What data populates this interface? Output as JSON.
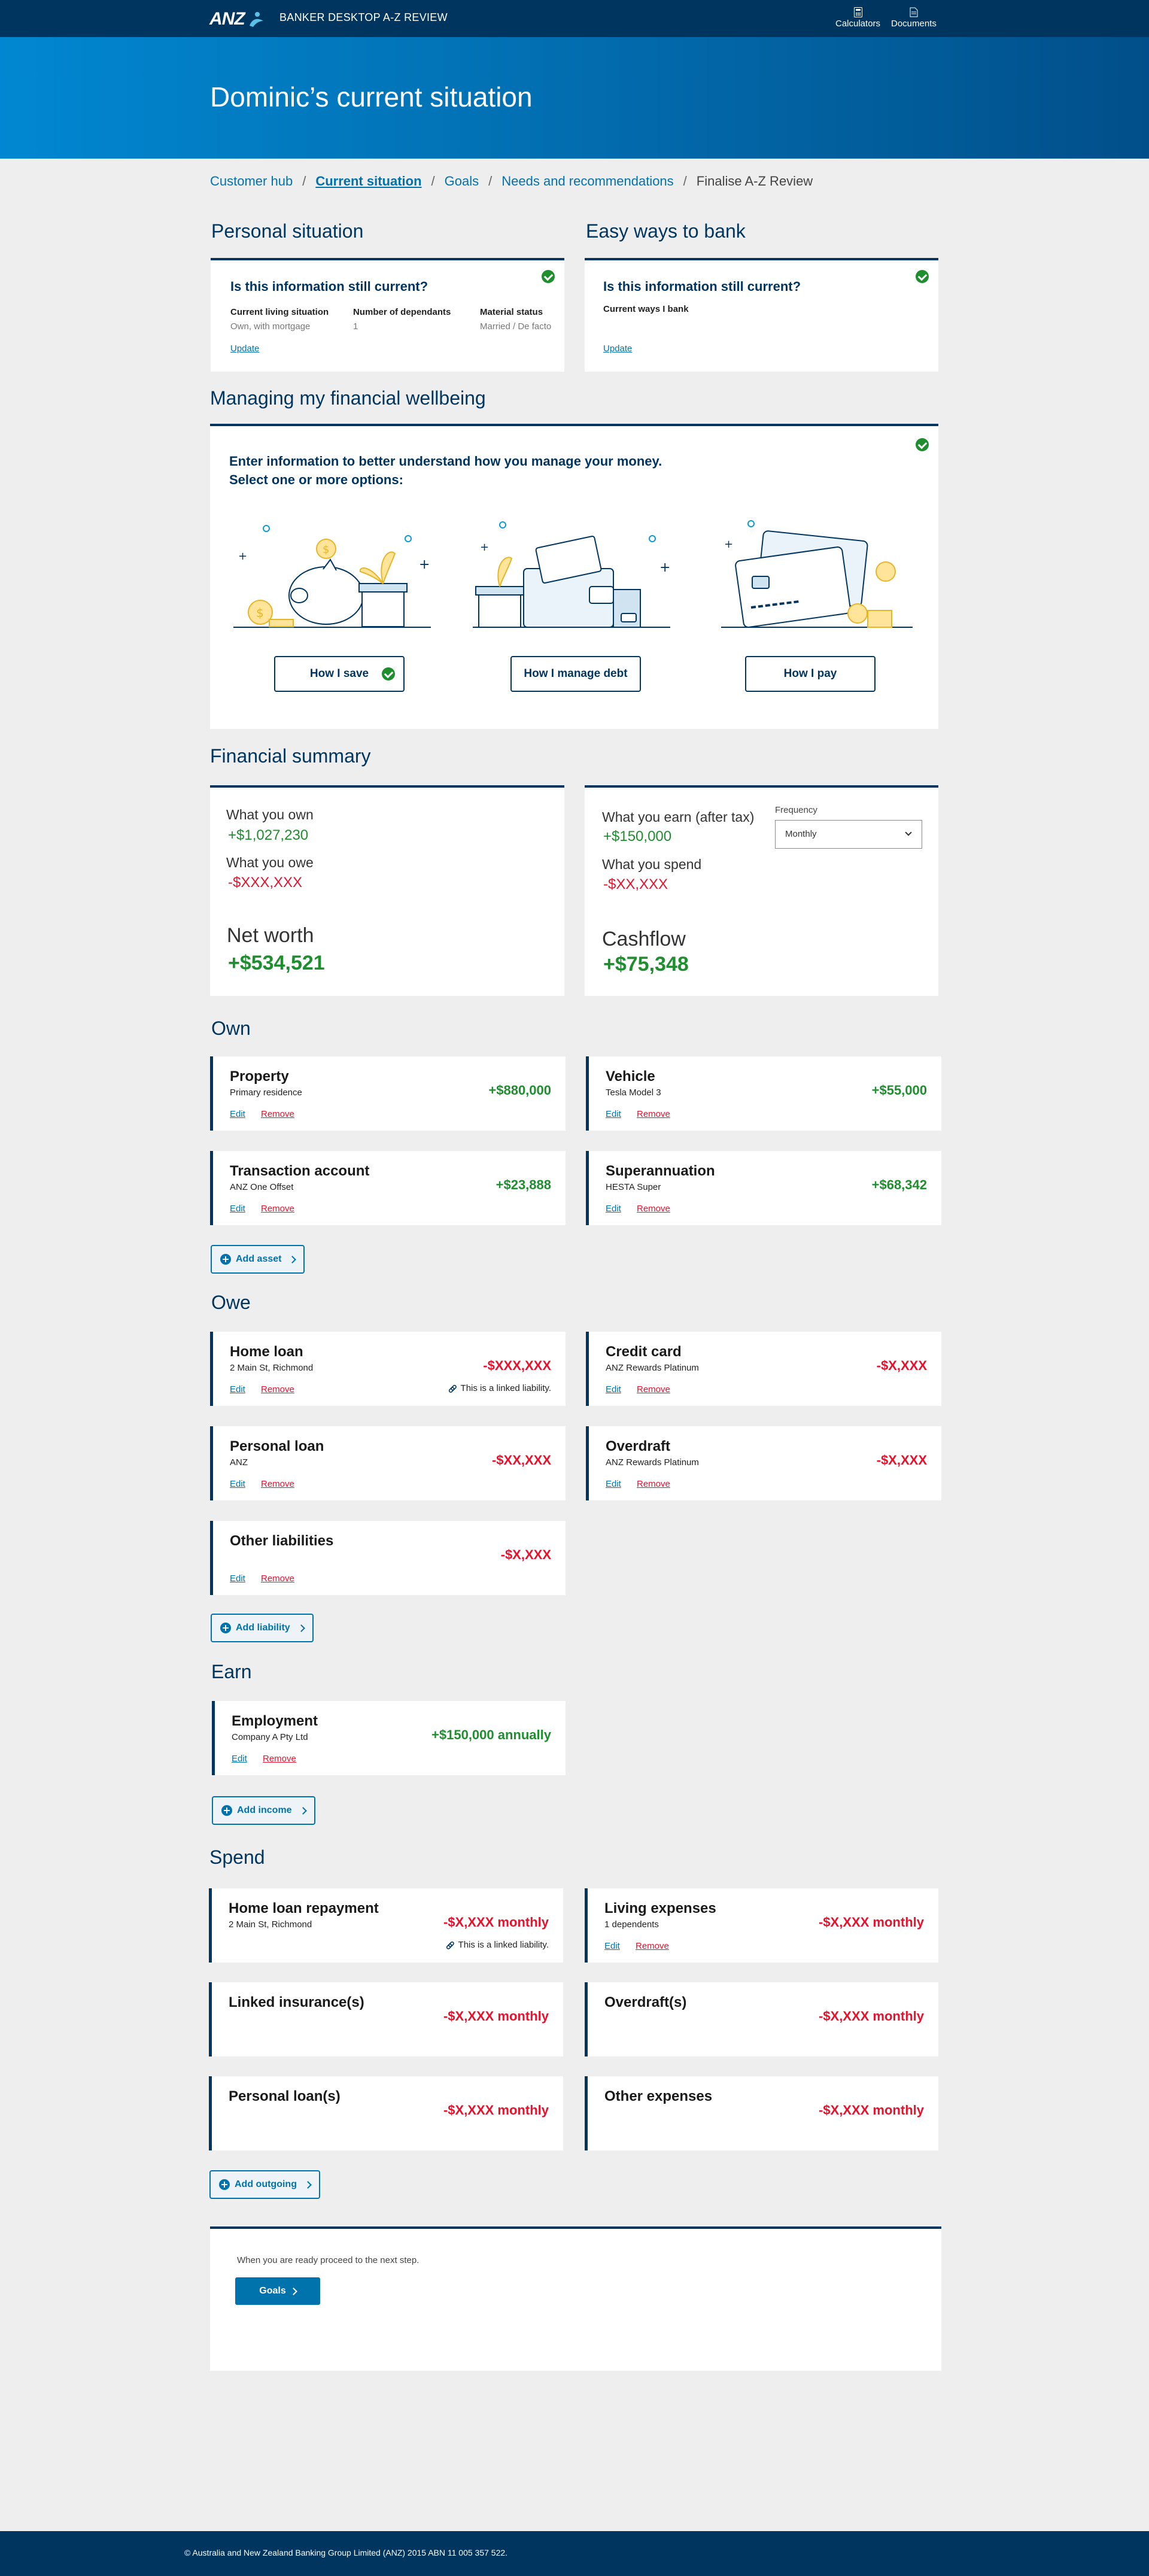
{
  "header": {
    "logo_text": "ANZ",
    "app_title": "BANKER DESKTOP A-Z REVIEW",
    "tools": [
      {
        "label": "Calculators",
        "icon": "calculator-icon"
      },
      {
        "label": "Documents",
        "icon": "document-icon"
      }
    ]
  },
  "hero": {
    "title": "Dominic’s current situation"
  },
  "breadcrumb": [
    {
      "label": "Customer hub"
    },
    {
      "label": "Current situation"
    },
    {
      "label": "Goals"
    },
    {
      "label": "Needs and recommendations"
    },
    {
      "label": "Finalise A-Z Review"
    }
  ],
  "personal": {
    "title": "Personal situation",
    "question": "Is this information still current?",
    "fields": [
      {
        "label": "Current living situation",
        "value": "Own, with mortgage"
      },
      {
        "label": "Number of dependants",
        "value": "1"
      },
      {
        "label": "Material status",
        "value": "Married / De facto"
      }
    ],
    "update": "Update"
  },
  "easy": {
    "title": "Easy ways to bank",
    "question": "Is this information still current?",
    "label": "Current ways I bank",
    "update": "Update"
  },
  "wellbeing": {
    "title": "Managing my financial wellbeing",
    "intro1": "Enter information to better understand how you manage your money.",
    "intro2": "Select one or more options:",
    "options": [
      {
        "label": "How I save",
        "selected": true
      },
      {
        "label": "How I manage debt",
        "selected": false
      },
      {
        "label": "How I pay",
        "selected": false
      }
    ]
  },
  "summary": {
    "title": "Financial summary",
    "own_label": "What you own",
    "own_value": "+$1,027,230",
    "owe_label": "What you owe",
    "owe_value": "-$XXX,XXX",
    "net_label": "Net worth",
    "net_value": "+$534,521",
    "earn_label": "What you earn (after tax)",
    "earn_value": "+$150,000",
    "spend_label": "What you spend",
    "spend_value": "-$XX,XXX",
    "cash_label": "Cashflow",
    "cash_value": "+$75,348",
    "frequency_label": "Frequency",
    "frequency_value": "Monthly"
  },
  "own": {
    "title": "Own",
    "items": [
      {
        "title": "Property",
        "sub": "Primary residence",
        "amount": "+$880,000"
      },
      {
        "title": "Vehicle",
        "sub": "Tesla Model 3",
        "amount": "+$55,000"
      },
      {
        "title": "Transaction account",
        "sub": "ANZ One Offset",
        "amount": "+$23,888"
      },
      {
        "title": "Superannuation",
        "sub": "HESTA Super",
        "amount": "+$68,342"
      }
    ],
    "add": "Add asset"
  },
  "owe": {
    "title": "Owe",
    "items": [
      {
        "title": "Home loan",
        "sub": "2 Main St, Richmond",
        "amount": "-$XXX,XXX",
        "linked": "This is a linked liability."
      },
      {
        "title": "Credit card",
        "sub": "ANZ Rewards Platinum",
        "amount": "-$X,XXX"
      },
      {
        "title": "Personal loan",
        "sub": "ANZ",
        "amount": "-$XX,XXX"
      },
      {
        "title": "Overdraft",
        "sub": "ANZ Rewards Platinum",
        "amount": "-$X,XXX"
      },
      {
        "title": "Other liabilities",
        "sub": "",
        "amount": "-$X,XXX"
      }
    ],
    "add": "Add liability"
  },
  "earn": {
    "title": "Earn",
    "items": [
      {
        "title": "Employment",
        "sub": "Company A Pty Ltd",
        "amount": "+$150,000 annually"
      }
    ],
    "add": "Add income"
  },
  "spend": {
    "title": "Spend",
    "items": [
      {
        "title": "Home loan repayment",
        "sub": "2 Main St, Richmond",
        "amount": "-$X,XXX monthly",
        "linked": "This is a linked liability."
      },
      {
        "title": "Living expenses",
        "sub": "1 dependents",
        "amount": "-$X,XXX monthly"
      },
      {
        "title": "Linked insurance(s)",
        "sub": "",
        "amount": "-$X,XXX monthly"
      },
      {
        "title": "Overdraft(s)",
        "sub": "",
        "amount": "-$X,XXX monthly"
      },
      {
        "title": "Personal loan(s)",
        "sub": "",
        "amount": "-$X,XXX monthly"
      },
      {
        "title": "Other expenses",
        "sub": "",
        "amount": "-$X,XXX monthly"
      }
    ],
    "add": "Add outgoing"
  },
  "actions": {
    "edit": "Edit",
    "remove": "Remove"
  },
  "proceed": {
    "text": "When you are ready proceed to the next step.",
    "button": "Goals"
  },
  "footer": {
    "text": "© Australia and New Zealand Banking Group Limited (ANZ) 2015 ABN 11 005 357 522."
  }
}
